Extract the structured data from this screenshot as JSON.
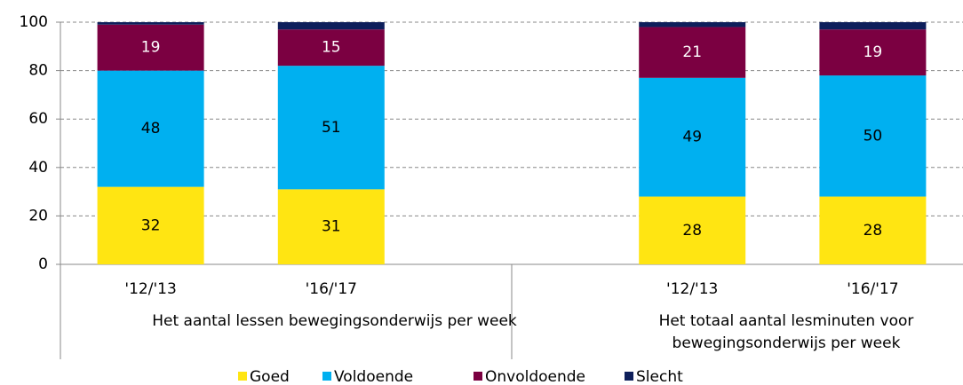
{
  "chart_data": {
    "type": "stacked_bar",
    "categories": [
      "'12/'13",
      "'16/'17",
      null,
      "'12/'13",
      "'16/'17"
    ],
    "groups": [
      "Het aantal lessen bewegingsonderwijs per week",
      "Het totaal aantal lesminuten voor bewegingsonderwijs per week"
    ],
    "series": [
      {
        "name": "Goed",
        "color": "#ffe512",
        "values": [
          32,
          31,
          null,
          28,
          28
        ],
        "show_labels": true
      },
      {
        "name": "Voldoende",
        "color": "#00b0f0",
        "values": [
          48,
          51,
          null,
          49,
          50
        ],
        "show_labels": true
      },
      {
        "name": "Onvoldoende",
        "color": "#7b0041",
        "values": [
          19,
          15,
          null,
          21,
          19
        ],
        "show_labels": true
      },
      {
        "name": "Slecht",
        "color": "#0e1f5b",
        "values": [
          1,
          3,
          null,
          2,
          3
        ],
        "show_labels": false
      }
    ],
    "ylim": [
      0,
      100
    ],
    "yticks": [
      0,
      20,
      40,
      60,
      80,
      100
    ],
    "grid": true,
    "legend": "bottom"
  }
}
